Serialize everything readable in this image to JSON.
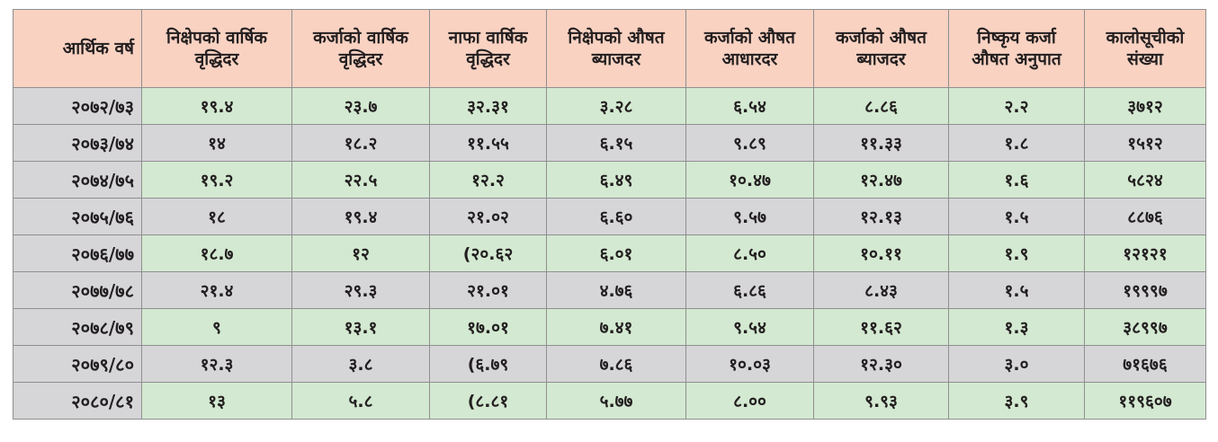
{
  "table": {
    "headers": [
      [
        "आर्थिक वर्ष"
      ],
      [
        "निक्षेपको वार्षिक",
        "वृद्धिदर"
      ],
      [
        "कर्जाको वार्षिक",
        "वृद्धिदर"
      ],
      [
        "नाफा वार्षिक",
        "वृद्धिदर"
      ],
      [
        "निक्षेपको औषत",
        "ब्याजदर"
      ],
      [
        "कर्जाको औषत",
        "आधारदर"
      ],
      [
        "कर्जाको औषत",
        "ब्याजदर"
      ],
      [
        "निष्कृय कर्जा",
        "औषत अनुपात"
      ],
      [
        "कालोसूचीको",
        "संख्या"
      ]
    ],
    "rows": [
      {
        "shade": "green",
        "cells": [
          "२०७२/७३",
          "१९.४",
          "२३.७",
          "३२.३१",
          "३.२८",
          "६.५४",
          "८.८६",
          "२.२",
          "३७१२"
        ]
      },
      {
        "shade": "grey",
        "cells": [
          "२०७३/७४",
          "१४",
          "१८.२",
          "११.५५",
          "६.१५",
          "९.८९",
          "११.३३",
          "१.८",
          "१५१२"
        ]
      },
      {
        "shade": "green",
        "cells": [
          "२०७४/७५",
          "१९.२",
          "२२.५",
          "१२.२",
          "६.४९",
          "१०.४७",
          "१२.४७",
          "१.६",
          "५८२४"
        ]
      },
      {
        "shade": "grey",
        "cells": [
          "२०७५/७६",
          "१८",
          "१९.४",
          "२१.०२",
          "६.६०",
          "९.५७",
          "१२.१३",
          "१.५",
          "८८७६"
        ]
      },
      {
        "shade": "green",
        "cells": [
          "२०७६/७७",
          "१८.७",
          "१२",
          "(२०.६२",
          "६.०१",
          "८.५०",
          "१०.११",
          "१.९",
          "१२१२१"
        ]
      },
      {
        "shade": "grey",
        "cells": [
          "२०७७/७८",
          "२१.४",
          "२९.३",
          "२१.०१",
          "४.७६",
          "६.८६",
          "८.४३",
          "१.५",
          "१९९९७"
        ]
      },
      {
        "shade": "green",
        "cells": [
          "२०७८/७९",
          "९",
          "१३.१",
          "१७.०१",
          "७.४१",
          "९.५४",
          "११.६२",
          "१.३",
          "३८९९७"
        ]
      },
      {
        "shade": "grey",
        "cells": [
          "२०७९/८०",
          "१२.३",
          "३.८",
          "(६.७९",
          "७.८६",
          "१०.०३",
          "१२.३०",
          "३.०",
          "७१६७६"
        ]
      },
      {
        "shade": "green",
        "cells": [
          "२०८०/८१",
          "१३",
          "५.८",
          "(८.८१",
          "५.७७",
          "८.००",
          "९.९३",
          "३.९",
          "११९६०७"
        ]
      }
    ]
  }
}
